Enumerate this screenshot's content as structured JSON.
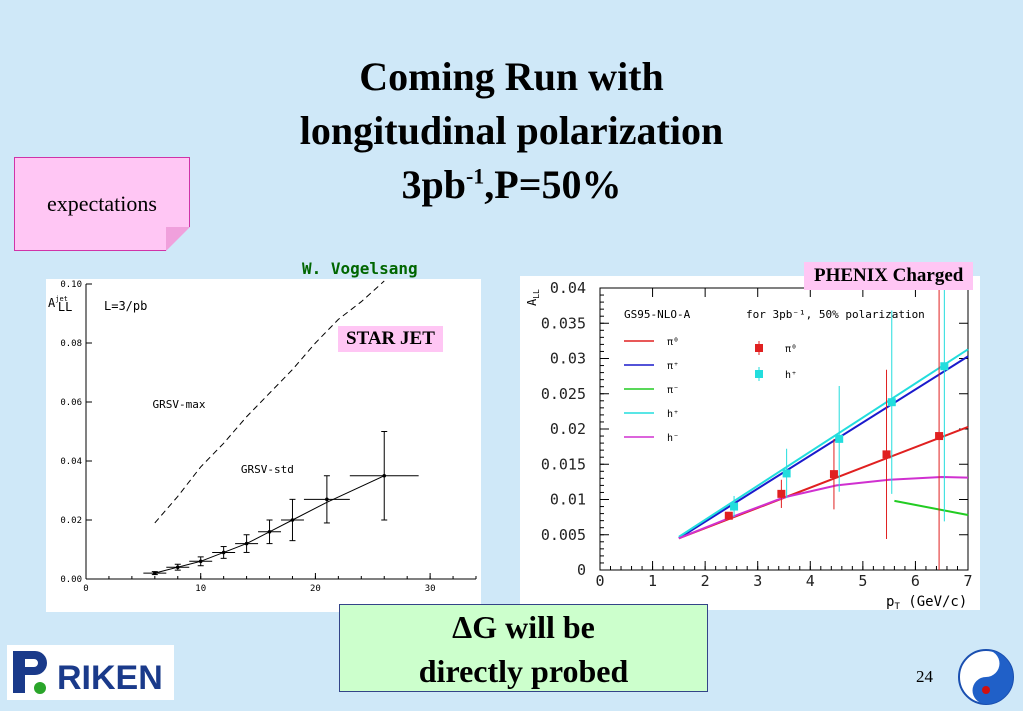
{
  "title": {
    "line1": "Coming Run with",
    "line2": "longitudinal polarization",
    "line3_a": "3pb",
    "line3_sup": "-1",
    "line3_b": ",P=50%"
  },
  "expectations_label": "expectations",
  "author": "W. Vogelsang",
  "star_label": "STAR JET",
  "phenix_label": "PHENIX Charged",
  "probed": {
    "line1": "ΔG will be",
    "line2": "directly probed"
  },
  "page_number": "24",
  "logo_text": "RIKEN",
  "colors": {
    "background": "#cfe8f8",
    "pink": "#ffc6f4",
    "green": "#ccffcc"
  },
  "chart_data": [
    {
      "type": "scatter",
      "ylabel": "A_LL^jet",
      "annotation": "L=3/pb",
      "xlim": [
        0,
        34
      ],
      "ylim": [
        0,
        0.1
      ],
      "x_ticks": [
        "0",
        "10",
        "20",
        "30"
      ],
      "y_ticks": [
        "0.00",
        "0.02",
        "0.04",
        "0.06",
        "0.08",
        "0.10"
      ],
      "series": [
        {
          "name": "GRSV-max",
          "style": "dashed",
          "x": [
            6,
            8,
            10,
            12,
            14,
            16,
            18,
            20,
            22,
            24,
            26
          ],
          "y": [
            0.019,
            0.028,
            0.038,
            0.046,
            0.055,
            0.063,
            0.071,
            0.08,
            0.088,
            0.094,
            0.101
          ]
        },
        {
          "name": "GRSV-std",
          "style": "solid",
          "x": [
            6,
            7,
            8,
            9,
            10,
            12,
            14,
            16,
            18,
            21,
            26
          ],
          "y": [
            0.002,
            0.003,
            0.004,
            0.005,
            0.006,
            0.009,
            0.012,
            0.016,
            0.02,
            0.026,
            0.035
          ]
        }
      ],
      "points": {
        "x": [
          6,
          8,
          10,
          12,
          14,
          16,
          18,
          21,
          26
        ],
        "y": [
          0.002,
          0.004,
          0.006,
          0.009,
          0.012,
          0.016,
          0.02,
          0.027,
          0.035
        ],
        "xerr": [
          1,
          1,
          1,
          1,
          1,
          1,
          1,
          2,
          3
        ],
        "yerr": [
          0.0005,
          0.001,
          0.0015,
          0.002,
          0.003,
          0.004,
          0.007,
          0.008,
          0.015
        ]
      }
    },
    {
      "type": "line",
      "ylabel": "A_LL",
      "xlabel": "p_T (GeV/c)",
      "header_left": "GS95-NLO-A",
      "header_right": "for 3pb⁻¹, 50% polarization",
      "xlim": [
        0,
        7
      ],
      "ylim": [
        0,
        0.04
      ],
      "x_ticks": [
        "0",
        "1",
        "2",
        "3",
        "4",
        "5",
        "6",
        "7"
      ],
      "y_ticks": [
        "0",
        "0.005",
        "0.01",
        "0.015",
        "0.02",
        "0.025",
        "0.03",
        "0.035",
        "0.04"
      ],
      "series": [
        {
          "name": "π⁰",
          "color": "#e02020",
          "x": [
            1.5,
            7
          ],
          "y": [
            0.0045,
            0.0203
          ]
        },
        {
          "name": "π⁺",
          "color": "#1a1acc",
          "x": [
            1.5,
            7
          ],
          "y": [
            0.0045,
            0.0303
          ]
        },
        {
          "name": "π⁻",
          "color": "#22cc22",
          "x": [
            5.6,
            7
          ],
          "y": [
            0.0098,
            0.0078
          ]
        },
        {
          "name": "h⁺",
          "color": "#22dddd",
          "x": [
            1.5,
            7
          ],
          "y": [
            0.0047,
            0.0313
          ]
        },
        {
          "name": "h⁻",
          "color": "#d030d0",
          "x": [
            1.5,
            2.5,
            3.5,
            4.5,
            5.5,
            6.5,
            7
          ],
          "y": [
            0.0045,
            0.0075,
            0.0103,
            0.012,
            0.0128,
            0.0132,
            0.0131
          ]
        }
      ],
      "points": [
        {
          "name": "π⁰",
          "color": "#e02020",
          "x": [
            2.45,
            3.45,
            4.45,
            5.45,
            6.45
          ],
          "y": [
            0.0077,
            0.0108,
            0.0136,
            0.0164,
            0.019
          ],
          "yerr": [
            0.0005,
            0.002,
            0.005,
            0.012,
            0.022
          ]
        },
        {
          "name": "h⁺",
          "color": "#22dddd",
          "x": [
            2.55,
            3.55,
            4.55,
            5.55,
            6.55
          ],
          "y": [
            0.009,
            0.0137,
            0.0186,
            0.0238,
            0.0289
          ],
          "yerr": [
            0.0015,
            0.0035,
            0.0075,
            0.013,
            0.022
          ]
        }
      ]
    }
  ]
}
